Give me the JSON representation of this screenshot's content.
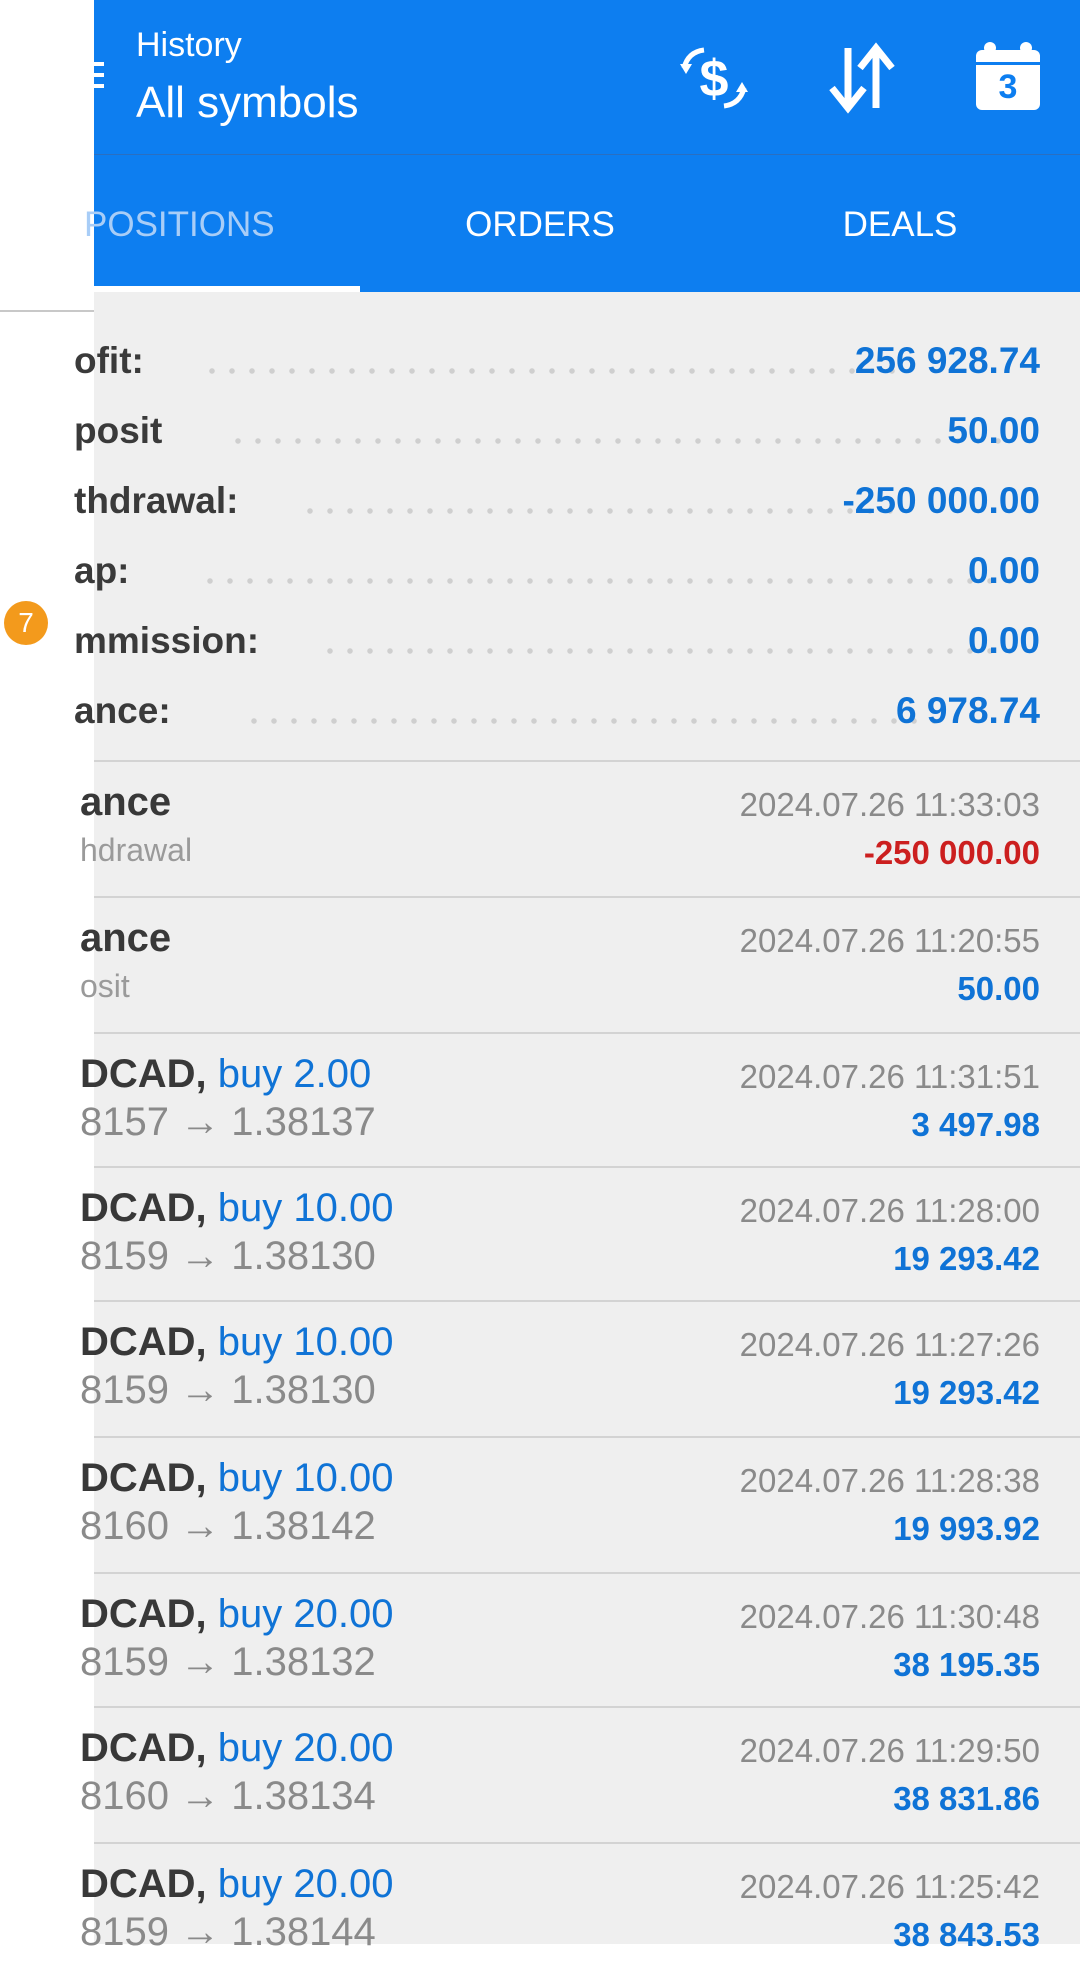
{
  "drawer": {
    "badge_count": "7"
  },
  "appbar": {
    "subtitle": "History",
    "title": "All symbols",
    "calendar_day": "3",
    "icons": [
      "balance-operations-icon",
      "sort-icon",
      "calendar-icon"
    ]
  },
  "tabs": [
    {
      "label": "POSITIONS",
      "active": true
    },
    {
      "label": "ORDERS",
      "active": false
    },
    {
      "label": "DEALS",
      "active": false
    }
  ],
  "summary": [
    {
      "label": "ofit:",
      "value": "256 928.74"
    },
    {
      "label": "posit",
      "value": "50.00"
    },
    {
      "label": "thdrawal:",
      "value": "-250 000.00"
    },
    {
      "label": "ap:",
      "value": "0.00"
    },
    {
      "label": "mmission:",
      "value": "0.00"
    },
    {
      "label": "ance:",
      "value": "6 978.74"
    }
  ],
  "deals": [
    {
      "title": "ance",
      "sub": "hdrawal",
      "time": "2024.07.26 11:33:03",
      "amount": "-250 000.00",
      "negative": true
    },
    {
      "title": "ance",
      "sub": "osit",
      "time": "2024.07.26 11:20:55",
      "amount": "50.00",
      "negative": false
    },
    {
      "symbol": "DCAD,",
      "side": "buy 2.00",
      "price": "8157 → 1.38137",
      "time": "2024.07.26 11:31:51",
      "amount": "3 497.98"
    },
    {
      "symbol": "DCAD,",
      "side": "buy 10.00",
      "price": "8159 → 1.38130",
      "time": "2024.07.26 11:28:00",
      "amount": "19 293.42"
    },
    {
      "symbol": "DCAD,",
      "side": "buy 10.00",
      "price": "8159 → 1.38130",
      "time": "2024.07.26 11:27:26",
      "amount": "19 293.42"
    },
    {
      "symbol": "DCAD,",
      "side": "buy 10.00",
      "price": "8160 → 1.38142",
      "time": "2024.07.26 11:28:38",
      "amount": "19 993.92"
    },
    {
      "symbol": "DCAD,",
      "side": "buy 20.00",
      "price": "8159 → 1.38132",
      "time": "2024.07.26 11:30:48",
      "amount": "38 195.35"
    },
    {
      "symbol": "DCAD,",
      "side": "buy 20.00",
      "price": "8160 → 1.38134",
      "time": "2024.07.26 11:29:50",
      "amount": "38 831.86"
    },
    {
      "symbol": "DCAD,",
      "side": "buy 20.00",
      "price": "8159 → 1.38144",
      "time": "2024.07.26 11:25:42",
      "amount": "38 843.53"
    }
  ],
  "colors": {
    "appbar": "#0d7ef0",
    "accent_blue": "#0f73d6",
    "negative_red": "#cc1f1f",
    "badge": "#f39a1c"
  }
}
